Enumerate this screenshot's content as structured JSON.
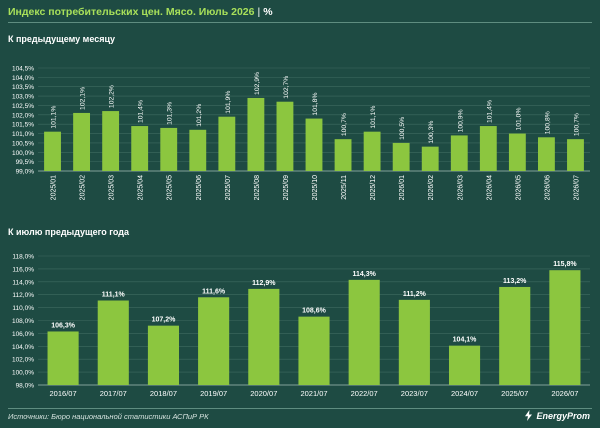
{
  "header": {
    "title": "Индекс потребительских цен. Мясо. Июль 2026",
    "separator": "|",
    "unit": "%"
  },
  "colors": {
    "background": "#1e4b43",
    "bar": "#8cc63f",
    "title_accent": "#a8e05a",
    "grid": "#3f6b60"
  },
  "chart_data": [
    {
      "type": "bar",
      "title": "К предыдущему месяцу",
      "categories": [
        "2025/01",
        "2025/02",
        "2025/03",
        "2025/04",
        "2025/05",
        "2025/06",
        "2025/07",
        "2025/08",
        "2025/09",
        "2025/10",
        "2025/11",
        "2025/12",
        "2026/01",
        "2026/02",
        "2026/03",
        "2026/04",
        "2026/05",
        "2026/06",
        "2026/07"
      ],
      "values": [
        101.1,
        102.1,
        102.2,
        101.4,
        101.3,
        101.2,
        101.9,
        102.9,
        102.7,
        101.8,
        100.7,
        101.1,
        100.5,
        100.3,
        100.9,
        101.4,
        101.0,
        100.8,
        100.7
      ],
      "value_labels": [
        "101,1%",
        "102,1%",
        "102,2%",
        "101,4%",
        "101,3%",
        "101,2%",
        "101,9%",
        "102,9%",
        "102,7%",
        "101,8%",
        "100,7%",
        "101,1%",
        "100,5%",
        "100,3%",
        "100,9%",
        "101,4%",
        "101,0%",
        "100,8%",
        "100,7%"
      ],
      "yticks": [
        99.0,
        99.5,
        100.0,
        100.5,
        101.0,
        101.5,
        102.0,
        102.5,
        103.0,
        103.5,
        104.0,
        104.5
      ],
      "ytick_labels": [
        "99,0%",
        "99,5%",
        "100,0%",
        "100,5%",
        "101,0%",
        "101,5%",
        "102,0%",
        "102,5%",
        "103,0%",
        "103,5%",
        "104,0%",
        "104,5%"
      ],
      "ylim": [
        99.0,
        104.5
      ],
      "grid": true
    },
    {
      "type": "bar",
      "title": "К июлю предыдущего года",
      "categories": [
        "2016/07",
        "2017/07",
        "2018/07",
        "2019/07",
        "2020/07",
        "2021/07",
        "2022/07",
        "2023/07",
        "2024/07",
        "2025/07",
        "2026/07"
      ],
      "values": [
        106.3,
        111.1,
        107.2,
        111.6,
        112.9,
        108.6,
        114.3,
        111.2,
        104.1,
        113.2,
        115.8
      ],
      "value_labels": [
        "106,3%",
        "111,1%",
        "107,2%",
        "111,6%",
        "112,9%",
        "108,6%",
        "114,3%",
        "111,2%",
        "104,1%",
        "113,2%",
        "115,8%"
      ],
      "yticks": [
        98.0,
        100.0,
        102.0,
        104.0,
        106.0,
        108.0,
        110.0,
        112.0,
        114.0,
        116.0,
        118.0
      ],
      "ytick_labels": [
        "98,0%",
        "100,0%",
        "102,0%",
        "104,0%",
        "106,0%",
        "108,0%",
        "110,0%",
        "112,0%",
        "114,0%",
        "116,0%",
        "118,0%"
      ],
      "ylim": [
        98.0,
        118.0
      ],
      "grid": true
    }
  ],
  "footer": {
    "source": "Источники: Бюро национальной статистики АСПиР РК",
    "logo_text": "EnergyProm",
    "logo_icon": "lightning-icon"
  }
}
